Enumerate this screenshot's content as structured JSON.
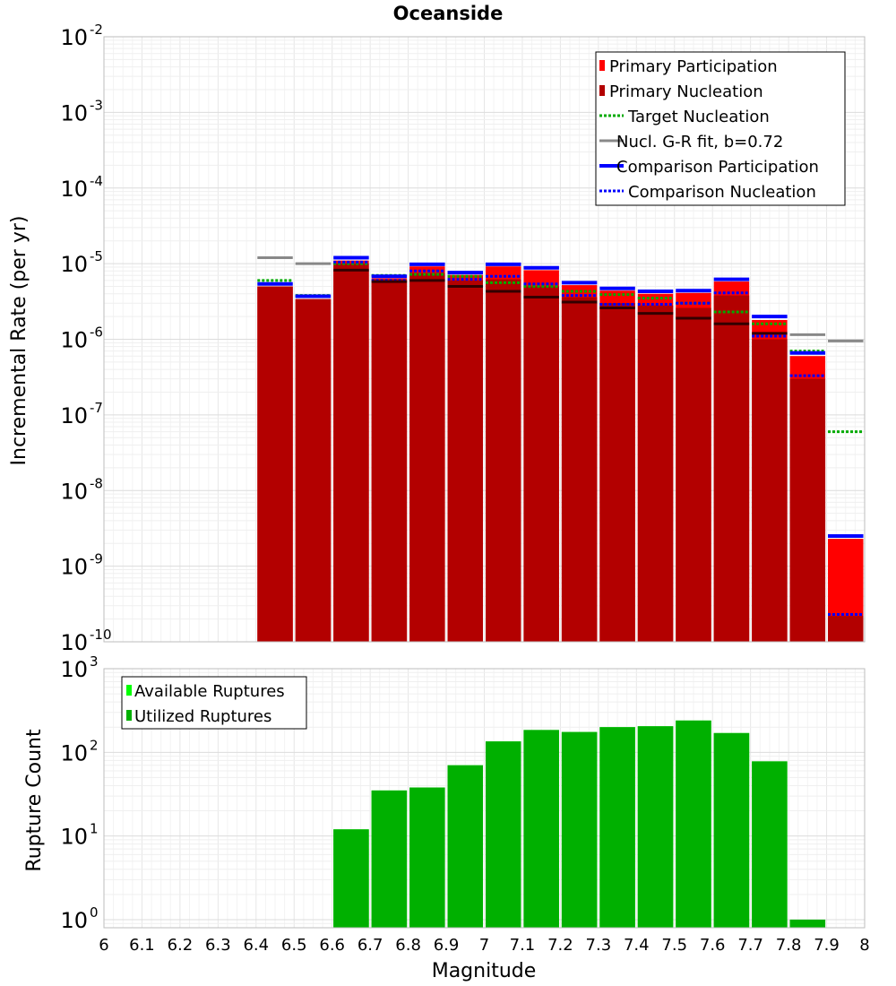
{
  "chart_data": [
    {
      "type": "bar",
      "title": "Oceanside",
      "ylabel": "Incremental Rate (per yr)",
      "yscale": "log",
      "ylim": [
        1e-10,
        0.01
      ],
      "xlim": [
        6.0,
        8.0
      ],
      "grid": true,
      "legend_position": "top-right",
      "y_tick_exponents": [
        "-10",
        "-9",
        "-8",
        "-7",
        "-6",
        "-5",
        "-4",
        "-3",
        "-2"
      ],
      "bin_centers": [
        6.45,
        6.55,
        6.65,
        6.75,
        6.85,
        6.95,
        7.05,
        7.15,
        7.25,
        7.35,
        7.45,
        7.55,
        7.65,
        7.75,
        7.85,
        7.95
      ],
      "series": [
        {
          "name": "Primary Participation",
          "style": "bar",
          "color": "#ff0000",
          "values": [
            5e-06,
            3.4e-06,
            1.1e-05,
            6.4e-06,
            9.2e-06,
            7.1e-06,
            9.2e-06,
            8.2e-06,
            5.2e-06,
            4.4e-06,
            4e-06,
            4.1e-06,
            5.8e-06,
            1.8e-06,
            6e-07,
            2.3e-09
          ]
        },
        {
          "name": "Primary Nucleation",
          "style": "bar",
          "color": "#b30000",
          "values": [
            5e-06,
            3.4e-06,
            1e-05,
            6e-06,
            7.5e-06,
            6e-06,
            6.2e-06,
            5e-06,
            3.6e-06,
            3e-06,
            2.8e-06,
            2.6e-06,
            3.8e-06,
            1e-06,
            3e-07,
            2.2e-10
          ]
        },
        {
          "name": "Target Nucleation",
          "style": "dotted",
          "color": "#00aa00",
          "values": [
            6e-06,
            3.8e-06,
            1e-05,
            7e-06,
            7.2e-06,
            6.8e-06,
            5.6e-06,
            5e-06,
            4.3e-06,
            3.9e-06,
            3.5e-06,
            3e-06,
            2.3e-06,
            1.6e-06,
            7e-07,
            6e-08
          ]
        },
        {
          "name": "Nucl. G-R fit, b=0.72",
          "style": "solid",
          "color": "#888888",
          "values": [
            1.2e-05,
            1e-05,
            null,
            null,
            null,
            null,
            null,
            null,
            null,
            null,
            null,
            null,
            null,
            null,
            1.15e-06,
            9.5e-07
          ]
        },
        {
          "name": "Comparison Participation",
          "style": "solid",
          "color": "#0000ff",
          "values": [
            5.4e-06,
            3.7e-06,
            1.2e-05,
            6.8e-06,
            9.8e-06,
            7.6e-06,
            9.8e-06,
            8.8e-06,
            5.6e-06,
            4.7e-06,
            4.3e-06,
            4.4e-06,
            6.2e-06,
            2e-06,
            6.6e-07,
            2.5e-09
          ]
        },
        {
          "name": "Comparison Nucleation",
          "style": "dotted",
          "color": "#0000ff",
          "values": [
            null,
            3.7e-06,
            1.05e-05,
            6e-06,
            8e-06,
            6.2e-06,
            6.8e-06,
            5.4e-06,
            3.8e-06,
            2.9e-06,
            2.9e-06,
            3e-06,
            4.1e-06,
            1.1e-06,
            3.3e-07,
            2.3e-10
          ]
        },
        {
          "name": "",
          "style": "solid",
          "color": "#330000",
          "values": [
            null,
            null,
            8.2e-06,
            5.8e-06,
            6e-06,
            5e-06,
            4.3e-06,
            3.6e-06,
            3.1e-06,
            2.6e-06,
            2.2e-06,
            1.9e-06,
            1.6e-06,
            1.2e-06,
            null,
            null
          ]
        }
      ]
    },
    {
      "type": "bar",
      "title": "",
      "xlabel": "Magnitude",
      "ylabel": "Rupture Count",
      "yscale": "log",
      "ylim": [
        0.8,
        1000
      ],
      "xlim": [
        6.0,
        8.0
      ],
      "grid": true,
      "legend_position": "top-left",
      "y_tick_exponents": [
        "0",
        "1",
        "2",
        "3"
      ],
      "x_tick_labels": [
        "6",
        "6.1",
        "6.2",
        "6.3",
        "6.4",
        "6.5",
        "6.6",
        "6.7",
        "6.8",
        "6.9",
        "7",
        "7.1",
        "7.2",
        "7.3",
        "7.4",
        "7.5",
        "7.6",
        "7.7",
        "7.8",
        "7.9",
        "8"
      ],
      "bin_centers": [
        6.65,
        6.75,
        6.85,
        6.95,
        7.05,
        7.15,
        7.25,
        7.35,
        7.45,
        7.55,
        7.65,
        7.75,
        7.85
      ],
      "series": [
        {
          "name": "Available Ruptures",
          "style": "bar",
          "color": "#00ff00",
          "values": [
            12,
            35,
            38,
            70,
            135,
            185,
            175,
            200,
            205,
            240,
            170,
            78,
            1
          ]
        },
        {
          "name": "Utilized Ruptures",
          "style": "bar",
          "color": "#00b000",
          "values": [
            12,
            35,
            38,
            70,
            135,
            185,
            175,
            200,
            205,
            240,
            170,
            78,
            1
          ]
        }
      ]
    }
  ]
}
